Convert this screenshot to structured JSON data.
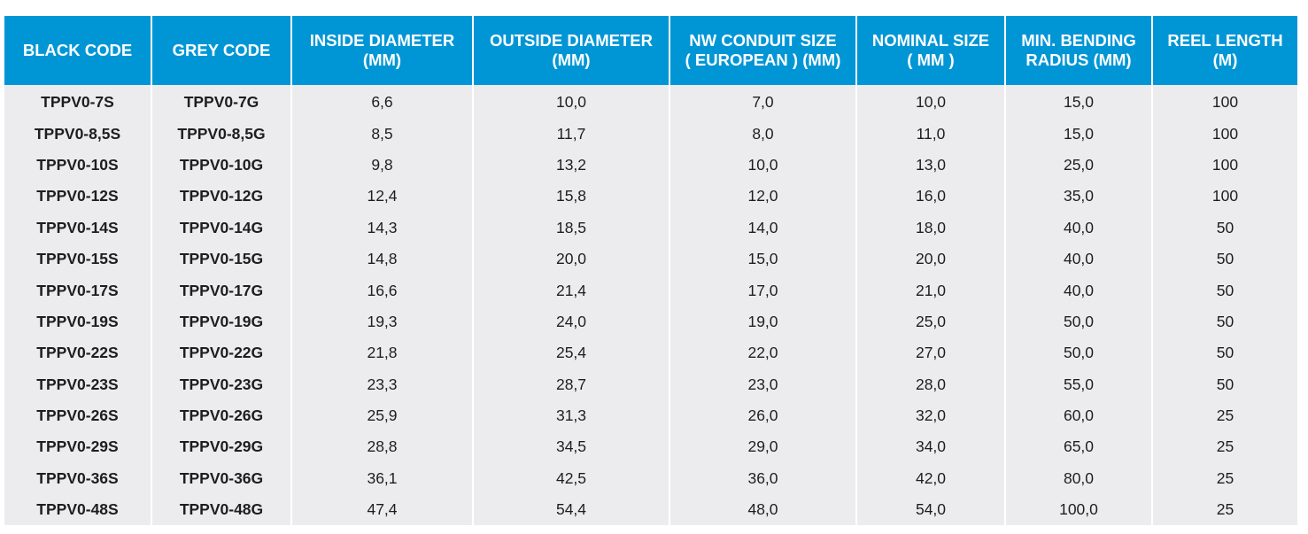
{
  "table": {
    "headers": [
      [
        "BLACK CODE"
      ],
      [
        "GREY CODE"
      ],
      [
        "INSIDE DIAMETER",
        "(MM)"
      ],
      [
        "OUTSIDE DIAMETER",
        "(MM)"
      ],
      [
        "NW CONDUIT SIZE",
        "( EUROPEAN ) (MM)"
      ],
      [
        "NOMINAL SIZE",
        "( MM )"
      ],
      [
        "MIN. BENDING",
        "RADIUS (MM)"
      ],
      [
        "REEL LENGTH",
        "(M)"
      ]
    ],
    "rows": [
      [
        "TPPV0-7S",
        "TPPV0-7G",
        "6,6",
        "10,0",
        "7,0",
        "10,0",
        "15,0",
        "100"
      ],
      [
        "TPPV0-8,5S",
        "TPPV0-8,5G",
        "8,5",
        "11,7",
        "8,0",
        "11,0",
        "15,0",
        "100"
      ],
      [
        "TPPV0-10S",
        "TPPV0-10G",
        "9,8",
        "13,2",
        "10,0",
        "13,0",
        "25,0",
        "100"
      ],
      [
        "TPPV0-12S",
        "TPPV0-12G",
        "12,4",
        "15,8",
        "12,0",
        "16,0",
        "35,0",
        "100"
      ],
      [
        "TPPV0-14S",
        "TPPV0-14G",
        "14,3",
        "18,5",
        "14,0",
        "18,0",
        "40,0",
        "50"
      ],
      [
        "TPPV0-15S",
        "TPPV0-15G",
        "14,8",
        "20,0",
        "15,0",
        "20,0",
        "40,0",
        "50"
      ],
      [
        "TPPV0-17S",
        "TPPV0-17G",
        "16,6",
        "21,4",
        "17,0",
        "21,0",
        "40,0",
        "50"
      ],
      [
        "TPPV0-19S",
        "TPPV0-19G",
        "19,3",
        "24,0",
        "19,0",
        "25,0",
        "50,0",
        "50"
      ],
      [
        "TPPV0-22S",
        "TPPV0-22G",
        "21,8",
        "25,4",
        "22,0",
        "27,0",
        "50,0",
        "50"
      ],
      [
        "TPPV0-23S",
        "TPPV0-23G",
        "23,3",
        "28,7",
        "23,0",
        "28,0",
        "55,0",
        "50"
      ],
      [
        "TPPV0-26S",
        "TPPV0-26G",
        "25,9",
        "31,3",
        "26,0",
        "32,0",
        "60,0",
        "25"
      ],
      [
        "TPPV0-29S",
        "TPPV0-29G",
        "28,8",
        "34,5",
        "29,0",
        "34,0",
        "65,0",
        "25"
      ],
      [
        "TPPV0-36S",
        "TPPV0-36G",
        "36,1",
        "42,5",
        "36,0",
        "42,0",
        "80,0",
        "25"
      ],
      [
        "TPPV0-48S",
        "TPPV0-48G",
        "47,4",
        "54,4",
        "48,0",
        "54,0",
        "100,0",
        "25"
      ]
    ]
  },
  "colors": {
    "header_bg": "#0096d6",
    "header_text": "#ffffff",
    "row_bg": "#ececef",
    "row_text": "#1e1e1e"
  }
}
